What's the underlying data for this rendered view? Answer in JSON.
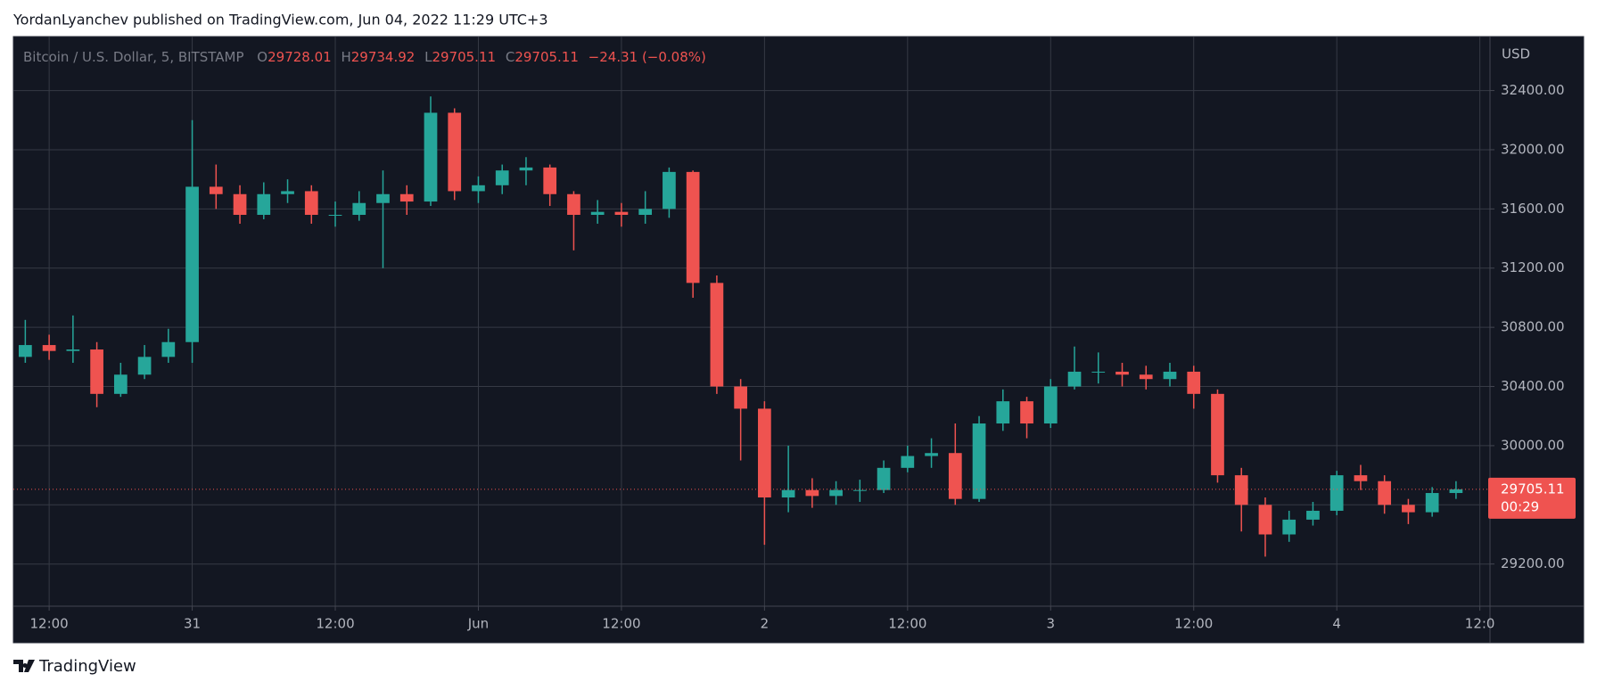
{
  "header": {
    "text": "YordanLyanchev published on TradingView.com, Jun 04, 2022 11:29 UTC+3"
  },
  "footer": {
    "brand": "TradingView"
  },
  "chart_data": {
    "type": "candlestick",
    "legend": {
      "symbol": "Bitcoin / U.S. Dollar, 5, BITSTAMP",
      "open_label": "O",
      "open": 29728.01,
      "high_label": "H",
      "high": 29734.92,
      "low_label": "L",
      "low": 29705.11,
      "close_label": "C",
      "close": 29705.11,
      "change": "−24.31 (−0.08%)"
    },
    "y_axis_label": "USD",
    "up_color": "#26a69a",
    "down_color": "#ef5350",
    "x": [
      10,
      12,
      14,
      16,
      18,
      20,
      22,
      24,
      26,
      28,
      30,
      32,
      34,
      36,
      38,
      40,
      42,
      44,
      46,
      48,
      50,
      52,
      54,
      56,
      58,
      60,
      62,
      64,
      66,
      68,
      70,
      72,
      74,
      76,
      78,
      80,
      82,
      84,
      86,
      88,
      90,
      92,
      94,
      96,
      98,
      100,
      102,
      104,
      106,
      108,
      110,
      112,
      114,
      116,
      118,
      120,
      122,
      124,
      126,
      128,
      130
    ],
    "open": [
      30600,
      30680,
      30640,
      30650,
      30350,
      30480,
      30600,
      30700,
      31750,
      31700,
      31560,
      31700,
      31720,
      31560,
      31560,
      31640,
      31700,
      31650,
      32250,
      31720,
      31760,
      31860,
      31880,
      31700,
      31560,
      31580,
      31560,
      31600,
      31850,
      31100,
      30400,
      30250,
      29650,
      29700,
      29660,
      29700,
      29700,
      29850,
      29930,
      29950,
      29640,
      30150,
      30300,
      30150,
      30400,
      30500,
      30500,
      30480,
      30450,
      30500,
      30350,
      29800,
      29600,
      29400,
      29500,
      29560,
      29800,
      29760,
      29600,
      29550,
      29680
    ],
    "high": [
      30850,
      30750,
      30880,
      30700,
      30560,
      30680,
      30790,
      32200,
      31900,
      31760,
      31780,
      31800,
      31760,
      31650,
      31720,
      31860,
      31760,
      32360,
      32280,
      31820,
      31900,
      31950,
      31900,
      31720,
      31660,
      31640,
      31720,
      31880,
      31860,
      31150,
      30450,
      30300,
      30000,
      29780,
      29760,
      29770,
      29900,
      30000,
      30050,
      30150,
      30200,
      30380,
      30330,
      30450,
      30670,
      30630,
      30560,
      30540,
      30560,
      30540,
      30380,
      29850,
      29650,
      29560,
      29620,
      29830,
      29870,
      29800,
      29640,
      29720,
      29760
    ],
    "low": [
      30560,
      30580,
      30560,
      30260,
      30330,
      30450,
      30560,
      30560,
      31600,
      31500,
      31530,
      31640,
      31500,
      31480,
      31520,
      31200,
      31560,
      31620,
      31660,
      31640,
      31700,
      31760,
      31620,
      31320,
      31500,
      31480,
      31500,
      31540,
      31000,
      30350,
      29900,
      29330,
      29550,
      29580,
      29600,
      29620,
      29680,
      29820,
      29850,
      29600,
      29620,
      30100,
      30050,
      30120,
      30380,
      30420,
      30400,
      30380,
      30400,
      30250,
      29750,
      29420,
      29250,
      29350,
      29460,
      29530,
      29700,
      29540,
      29470,
      29520,
      29640
    ],
    "close": [
      30680,
      30640,
      30650,
      30350,
      30480,
      30600,
      30700,
      31750,
      31700,
      31560,
      31700,
      31720,
      31560,
      31560,
      31640,
      31700,
      31650,
      32250,
      31720,
      31760,
      31860,
      31880,
      31700,
      31560,
      31580,
      31560,
      31600,
      31850,
      31100,
      30400,
      30250,
      29650,
      29700,
      29660,
      29700,
      29700,
      29850,
      29930,
      29950,
      29640,
      30150,
      30300,
      30150,
      30400,
      30500,
      30500,
      30480,
      30450,
      30500,
      30350,
      29800,
      29600,
      29400,
      29500,
      29560,
      29800,
      29760,
      29600,
      29550,
      29680,
      29705.11
    ],
    "xlim": [
      9,
      132.85
    ],
    "xticks": [
      {
        "value": 12,
        "label": "12:00"
      },
      {
        "value": 24,
        "label": "31"
      },
      {
        "value": 36,
        "label": "12:00"
      },
      {
        "value": 48,
        "label": "Jun"
      },
      {
        "value": 60,
        "label": "12:00"
      },
      {
        "value": 72,
        "label": "2"
      },
      {
        "value": 84,
        "label": "12:00"
      },
      {
        "value": 96,
        "label": "3"
      },
      {
        "value": 108,
        "label": "12:00"
      },
      {
        "value": 120,
        "label": "4"
      },
      {
        "value": 132,
        "label": "12:0"
      }
    ],
    "ylim": [
      28915,
      32765
    ],
    "yticks": [
      {
        "value": 29200,
        "label": "29200.00"
      },
      {
        "value": 29600,
        "label": "29600.00"
      },
      {
        "value": 30000,
        "label": "30000.00"
      },
      {
        "value": 30400,
        "label": "30400.00"
      },
      {
        "value": 30800,
        "label": "30800.00"
      },
      {
        "value": 31200,
        "label": "31200.00"
      },
      {
        "value": 31600,
        "label": "31600.00"
      },
      {
        "value": 32000,
        "label": "32000.00"
      },
      {
        "value": 32400,
        "label": "32400.00"
      }
    ],
    "grid": true,
    "last_price": {
      "value": 29705.11,
      "countdown": "00:29",
      "color": "#ef5350"
    }
  }
}
